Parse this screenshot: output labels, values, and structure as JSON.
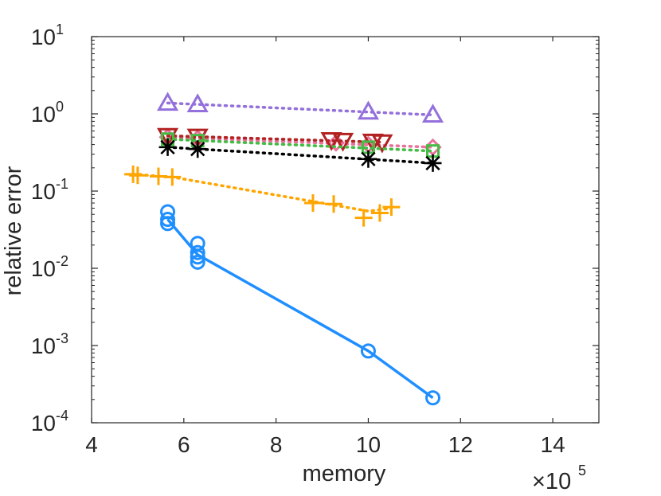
{
  "chart_data": {
    "type": "line",
    "title": "",
    "xlabel": "memory",
    "ylabel": "relative error",
    "xscale_multiplier": "×10",
    "xscale_exponent": "5",
    "x_axis_scale": "linear",
    "y_axis_scale": "log",
    "xlim": [
      4,
      15
    ],
    "ylim": [
      0.0001,
      10
    ],
    "x_ticks": [
      {
        "value": 4,
        "label": "4"
      },
      {
        "value": 6,
        "label": "6"
      },
      {
        "value": 8,
        "label": "8"
      },
      {
        "value": 10,
        "label": "10"
      },
      {
        "value": 12,
        "label": "12"
      },
      {
        "value": 14,
        "label": "14"
      }
    ],
    "y_ticks": [
      {
        "value": 10,
        "base": "10",
        "exp": "1"
      },
      {
        "value": 1,
        "base": "10",
        "exp": "0"
      },
      {
        "value": 0.1,
        "base": "10",
        "exp": "-1"
      },
      {
        "value": 0.01,
        "base": "10",
        "exp": "-2"
      },
      {
        "value": 0.001,
        "base": "10",
        "exp": "-3"
      },
      {
        "value": 0.0001,
        "base": "10",
        "exp": "-4"
      }
    ],
    "grid": false,
    "series": [
      {
        "name": "series-triangle-up",
        "color": "#9370db",
        "marker": "triangle-up",
        "line_style": "dotted",
        "line_points": [
          [
            5.65,
            1.38
          ],
          [
            11.4,
            0.97
          ]
        ],
        "points": [
          [
            5.65,
            1.38
          ],
          [
            6.3,
            1.32
          ],
          [
            10.0,
            1.06
          ],
          [
            11.4,
            0.97
          ]
        ]
      },
      {
        "name": "series-diamond",
        "color": "#e8729a",
        "marker": "diamond",
        "line_style": "dotted",
        "line_points": [
          [
            5.65,
            0.5
          ],
          [
            11.4,
            0.37
          ]
        ],
        "points": [
          [
            5.65,
            0.5
          ],
          [
            6.3,
            0.48
          ],
          [
            9.3,
            0.42
          ],
          [
            10.0,
            0.4
          ],
          [
            11.4,
            0.37
          ]
        ]
      },
      {
        "name": "series-triangle-down",
        "color": "#b22222",
        "marker": "triangle-down",
        "line_style": "dotted",
        "line_points": [
          [
            5.65,
            0.52
          ],
          [
            10.3,
            0.43
          ]
        ],
        "points": [
          [
            5.65,
            0.52
          ],
          [
            6.3,
            0.51
          ],
          [
            9.2,
            0.46
          ],
          [
            9.45,
            0.45
          ],
          [
            10.1,
            0.44
          ],
          [
            10.3,
            0.43
          ]
        ]
      },
      {
        "name": "series-square",
        "color": "#44bb44",
        "marker": "square",
        "line_style": "dotted",
        "line_points": [
          [
            5.65,
            0.47
          ],
          [
            11.4,
            0.33
          ]
        ],
        "points": [
          [
            5.65,
            0.47
          ],
          [
            6.3,
            0.45
          ],
          [
            10.0,
            0.37
          ],
          [
            11.4,
            0.33
          ]
        ]
      },
      {
        "name": "series-asterisk",
        "color": "#000000",
        "marker": "asterisk",
        "line_style": "dotted",
        "line_points": [
          [
            5.65,
            0.37
          ],
          [
            11.4,
            0.23
          ]
        ],
        "points": [
          [
            5.65,
            0.37
          ],
          [
            6.3,
            0.35
          ],
          [
            10.0,
            0.26
          ],
          [
            11.4,
            0.23
          ]
        ]
      },
      {
        "name": "series-plus",
        "color": "#ffa500",
        "marker": "plus",
        "line_style": "dotted",
        "line_points": [
          [
            4.9,
            0.165
          ],
          [
            5.75,
            0.152
          ],
          [
            9.0,
            0.07
          ],
          [
            10.0,
            0.055
          ],
          [
            10.5,
            0.06
          ]
        ],
        "points": [
          [
            4.9,
            0.165
          ],
          [
            5.0,
            0.16
          ],
          [
            5.45,
            0.155
          ],
          [
            5.75,
            0.152
          ],
          [
            8.8,
            0.07
          ],
          [
            9.25,
            0.068
          ],
          [
            9.9,
            0.045
          ],
          [
            10.25,
            0.052
          ],
          [
            10.5,
            0.062
          ]
        ]
      },
      {
        "name": "series-circle",
        "color": "#1f8fff",
        "marker": "circle",
        "line_style": "solid",
        "line_points": [
          [
            5.65,
            0.043
          ],
          [
            6.3,
            0.015
          ],
          [
            10.0,
            0.00085
          ],
          [
            11.4,
            0.00021
          ]
        ],
        "points": [
          [
            5.65,
            0.054
          ],
          [
            5.65,
            0.043
          ],
          [
            5.65,
            0.038
          ],
          [
            6.3,
            0.021
          ],
          [
            6.3,
            0.016
          ],
          [
            6.3,
            0.014
          ],
          [
            6.3,
            0.012
          ],
          [
            10.0,
            0.00085
          ],
          [
            11.4,
            0.00021
          ]
        ]
      }
    ]
  }
}
